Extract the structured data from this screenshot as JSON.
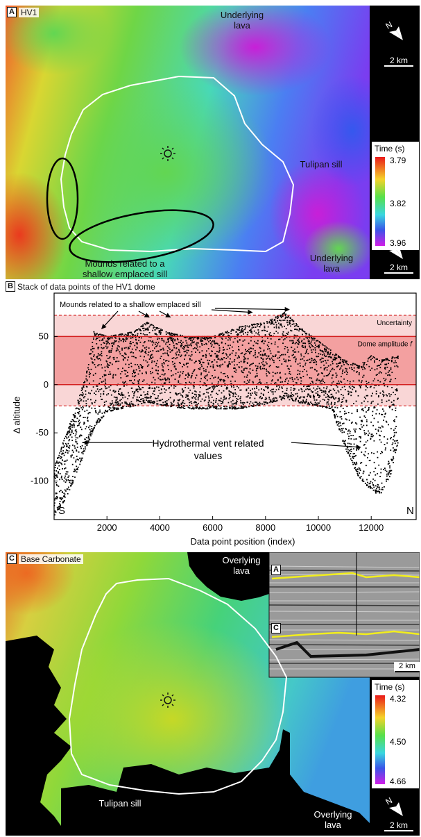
{
  "panel_a": {
    "letter": "A",
    "title": "HV1",
    "labels": {
      "underlying_lava_top": "Underlying\nlava",
      "underlying_lava_bottom": "Underlying\nlava",
      "tulipan_sill": "Tulipan sill",
      "mounds": "Mounds related to a\nshallow emplaced sill"
    },
    "scale_bar": "2 km",
    "colorbar": {
      "title": "Time (s)",
      "ticks": [
        "3.79",
        "3.82",
        "3.96"
      ]
    }
  },
  "panel_b": {
    "letter": "B",
    "title": "Stack of data points of the HV1 dome"
  },
  "panel_c": {
    "letter": "C",
    "title": "Base Carbonate",
    "labels": {
      "overlying_lava_top": "Overlying\nlava",
      "overlying_lava_bottom": "Overlying\nlava",
      "tulipan_sill": "Tulipan sill"
    },
    "inset": {
      "label_a": "A",
      "label_c": "C",
      "scale_bar": "2 km"
    },
    "scale_bar": "2 km",
    "colorbar": {
      "title": "Time (s)",
      "ticks": [
        "4.32",
        "4.50",
        "4.66"
      ]
    }
  },
  "colors": {
    "sill_outline": "#ffffff",
    "dome_band": "#f3a0a0",
    "uncertainty_band": "#f9d6d6",
    "dome_line": "#d42020",
    "horizon": "#f2ee1c"
  },
  "chart_data": {
    "type": "scatter",
    "title": "Stack of data points of the HV1 dome",
    "xlabel": "Data point position (index)",
    "ylabel": "Δ altitude",
    "xlim": [
      0,
      13700
    ],
    "ylim": [
      -140,
      95
    ],
    "xticks": [
      2000,
      4000,
      6000,
      8000,
      10000,
      12000
    ],
    "yticks": [
      50,
      0,
      -50,
      -100
    ],
    "end_labels": {
      "left": "S",
      "right": "N"
    },
    "dome_amplitude_line": 50,
    "zero_line": 0,
    "uncertainty_upper": 72,
    "uncertainty_lower": -22,
    "annotations": {
      "mounds": "Mounds related to a shallow emplaced sill",
      "uncertainty": "Uncertainty",
      "dome_amplitude": "Dome amplitude",
      "dome_amplitude_symbol": "f",
      "hydrothermal": "Hydrothermal vent related\nvalues"
    },
    "envelope": {
      "x": [
        0,
        400,
        800,
        1200,
        1500,
        2000,
        3000,
        3500,
        4200,
        5000,
        6000,
        7000,
        8000,
        8700,
        9500,
        10500,
        11000,
        11500,
        12000,
        12300,
        12700,
        13000
      ],
      "upper": [
        -85,
        -55,
        -25,
        10,
        55,
        50,
        55,
        65,
        55,
        50,
        50,
        60,
        65,
        75,
        55,
        35,
        25,
        20,
        30,
        25,
        28,
        30
      ],
      "lower": [
        -135,
        -120,
        -95,
        -65,
        -45,
        -28,
        -22,
        -18,
        -22,
        -25,
        -25,
        -25,
        -20,
        -15,
        -20,
        -25,
        -65,
        -95,
        -110,
        -115,
        -95,
        -60
      ]
    }
  }
}
